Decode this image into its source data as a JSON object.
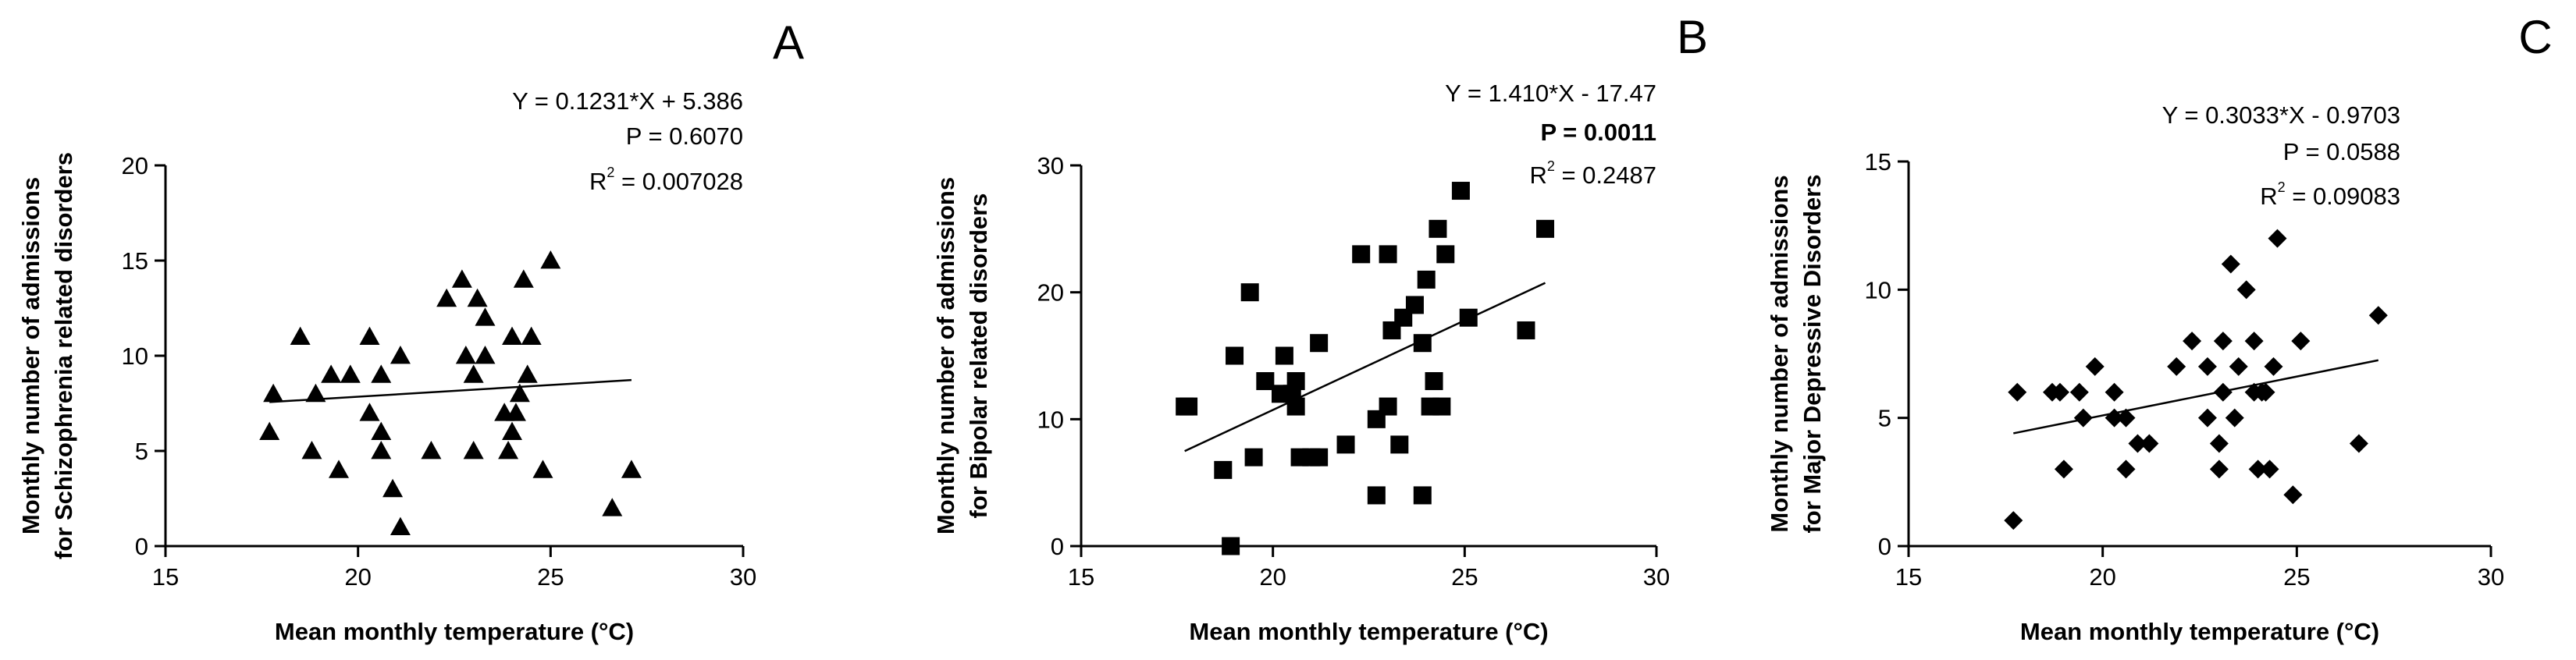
{
  "chart_data": [
    {
      "type": "scatter",
      "panel": "A",
      "marker": "triangle",
      "xlabel": "Mean monthly temperature (°C)",
      "ylabel": [
        "Monthly number of admissions",
        "for Schizophrenia related disorders"
      ],
      "xlim": [
        15,
        30
      ],
      "ylim": [
        0,
        20
      ],
      "xticks": [
        15,
        20,
        25,
        30
      ],
      "yticks": [
        0,
        5,
        10,
        15,
        20
      ],
      "annotations": [
        {
          "text": "Y = 0.1231*X + 5.386",
          "bold": false
        },
        {
          "text": "P = 0.6070",
          "bold": false
        },
        {
          "text": "R",
          "sup": "2",
          "rest": " = 0.007028",
          "bold": false
        }
      ],
      "regression": {
        "slope": 0.1231,
        "intercept": 5.386,
        "x_range": [
          17.7,
          27.1
        ]
      },
      "points": [
        {
          "x": 17.7,
          "y": 6
        },
        {
          "x": 17.8,
          "y": 8
        },
        {
          "x": 18.5,
          "y": 11
        },
        {
          "x": 18.8,
          "y": 5
        },
        {
          "x": 18.9,
          "y": 8
        },
        {
          "x": 19.3,
          "y": 9
        },
        {
          "x": 19.5,
          "y": 4
        },
        {
          "x": 19.8,
          "y": 9
        },
        {
          "x": 20.3,
          "y": 11
        },
        {
          "x": 20.3,
          "y": 7
        },
        {
          "x": 20.6,
          "y": 6
        },
        {
          "x": 20.6,
          "y": 9
        },
        {
          "x": 20.6,
          "y": 5
        },
        {
          "x": 20.9,
          "y": 3
        },
        {
          "x": 21.1,
          "y": 10
        },
        {
          "x": 21.1,
          "y": 1
        },
        {
          "x": 21.9,
          "y": 5
        },
        {
          "x": 22.3,
          "y": 13
        },
        {
          "x": 22.7,
          "y": 14
        },
        {
          "x": 22.8,
          "y": 10
        },
        {
          "x": 23.0,
          "y": 5
        },
        {
          "x": 23.0,
          "y": 9
        },
        {
          "x": 23.1,
          "y": 13
        },
        {
          "x": 23.3,
          "y": 10
        },
        {
          "x": 23.3,
          "y": 12
        },
        {
          "x": 23.8,
          "y": 7
        },
        {
          "x": 23.9,
          "y": 5
        },
        {
          "x": 24.0,
          "y": 6
        },
        {
          "x": 24.0,
          "y": 11
        },
        {
          "x": 24.1,
          "y": 7
        },
        {
          "x": 24.2,
          "y": 8
        },
        {
          "x": 24.3,
          "y": 14
        },
        {
          "x": 24.4,
          "y": 9
        },
        {
          "x": 24.5,
          "y": 11
        },
        {
          "x": 24.8,
          "y": 4
        },
        {
          "x": 25.0,
          "y": 15
        },
        {
          "x": 26.6,
          "y": 2
        },
        {
          "x": 27.1,
          "y": 4
        }
      ]
    },
    {
      "type": "scatter",
      "panel": "B",
      "marker": "square",
      "xlabel": "Mean monthly temperature (°C)",
      "ylabel": [
        "Monthly number of admissions",
        "for Bipolar related disorders"
      ],
      "xlim": [
        15,
        30
      ],
      "ylim": [
        0,
        30
      ],
      "xticks": [
        15,
        20,
        25,
        30
      ],
      "yticks": [
        0,
        10,
        20,
        30
      ],
      "annotations": [
        {
          "text": "Y = 1.410*X - 17.47",
          "bold": false
        },
        {
          "text": "P = 0.0011",
          "bold": true
        },
        {
          "text": "R",
          "sup": "2",
          "rest": " = 0.2487",
          "bold": false
        }
      ],
      "regression": {
        "slope": 1.41,
        "intercept": -17.47,
        "x_range": [
          17.7,
          27.1
        ]
      },
      "points": [
        {
          "x": 17.7,
          "y": 11
        },
        {
          "x": 17.8,
          "y": 11
        },
        {
          "x": 18.7,
          "y": 6
        },
        {
          "x": 18.9,
          "y": 0
        },
        {
          "x": 19.0,
          "y": 15
        },
        {
          "x": 19.4,
          "y": 20
        },
        {
          "x": 19.5,
          "y": 7
        },
        {
          "x": 19.8,
          "y": 13
        },
        {
          "x": 20.2,
          "y": 12
        },
        {
          "x": 20.3,
          "y": 15
        },
        {
          "x": 20.5,
          "y": 12
        },
        {
          "x": 20.6,
          "y": 13
        },
        {
          "x": 20.6,
          "y": 11
        },
        {
          "x": 20.7,
          "y": 7
        },
        {
          "x": 21.0,
          "y": 7
        },
        {
          "x": 21.2,
          "y": 7
        },
        {
          "x": 21.2,
          "y": 16
        },
        {
          "x": 21.9,
          "y": 8
        },
        {
          "x": 22.3,
          "y": 23
        },
        {
          "x": 22.7,
          "y": 10
        },
        {
          "x": 22.7,
          "y": 4
        },
        {
          "x": 23.0,
          "y": 23
        },
        {
          "x": 23.0,
          "y": 11
        },
        {
          "x": 23.1,
          "y": 17
        },
        {
          "x": 23.3,
          "y": 8
        },
        {
          "x": 23.4,
          "y": 18
        },
        {
          "x": 23.7,
          "y": 19
        },
        {
          "x": 23.9,
          "y": 16
        },
        {
          "x": 23.9,
          "y": 4
        },
        {
          "x": 24.0,
          "y": 21
        },
        {
          "x": 24.1,
          "y": 11
        },
        {
          "x": 24.2,
          "y": 13
        },
        {
          "x": 24.3,
          "y": 25
        },
        {
          "x": 24.4,
          "y": 11
        },
        {
          "x": 24.5,
          "y": 23
        },
        {
          "x": 24.9,
          "y": 28
        },
        {
          "x": 25.1,
          "y": 18
        },
        {
          "x": 26.6,
          "y": 17
        },
        {
          "x": 27.1,
          "y": 25
        }
      ]
    },
    {
      "type": "scatter",
      "panel": "C",
      "marker": "diamond",
      "xlabel": "Mean monthly temperature (°C)",
      "ylabel": [
        "Monthly number of admissions",
        "for Major Depressive Disorders"
      ],
      "xlim": [
        15,
        30
      ],
      "ylim": [
        0,
        15
      ],
      "xticks": [
        15,
        20,
        25,
        30
      ],
      "yticks": [
        0,
        5,
        10,
        15
      ],
      "annotations": [
        {
          "text": "Y = 0.3033*X - 0.9703",
          "bold": false
        },
        {
          "text": "P = 0.0588",
          "bold": false
        },
        {
          "text": "R",
          "sup": "2",
          "rest": " = 0.09083",
          "bold": false
        }
      ],
      "regression": {
        "slope": 0.3033,
        "intercept": -0.9703,
        "x_range": [
          17.7,
          27.1
        ]
      },
      "points": [
        {
          "x": 17.7,
          "y": 1
        },
        {
          "x": 17.8,
          "y": 6
        },
        {
          "x": 18.7,
          "y": 6
        },
        {
          "x": 18.9,
          "y": 6
        },
        {
          "x": 19.0,
          "y": 3
        },
        {
          "x": 19.4,
          "y": 6
        },
        {
          "x": 19.5,
          "y": 5
        },
        {
          "x": 19.8,
          "y": 7
        },
        {
          "x": 20.3,
          "y": 6
        },
        {
          "x": 20.3,
          "y": 5
        },
        {
          "x": 20.6,
          "y": 5
        },
        {
          "x": 20.6,
          "y": 3
        },
        {
          "x": 20.9,
          "y": 4
        },
        {
          "x": 21.2,
          "y": 4
        },
        {
          "x": 21.9,
          "y": 7
        },
        {
          "x": 22.3,
          "y": 8
        },
        {
          "x": 22.7,
          "y": 5
        },
        {
          "x": 22.7,
          "y": 7
        },
        {
          "x": 23.0,
          "y": 3
        },
        {
          "x": 23.0,
          "y": 4
        },
        {
          "x": 23.1,
          "y": 6
        },
        {
          "x": 23.1,
          "y": 8
        },
        {
          "x": 23.3,
          "y": 11
        },
        {
          "x": 23.4,
          "y": 5
        },
        {
          "x": 23.5,
          "y": 7
        },
        {
          "x": 23.7,
          "y": 10
        },
        {
          "x": 23.9,
          "y": 6
        },
        {
          "x": 23.9,
          "y": 8
        },
        {
          "x": 24.0,
          "y": 3
        },
        {
          "x": 24.1,
          "y": 6
        },
        {
          "x": 24.2,
          "y": 6
        },
        {
          "x": 24.3,
          "y": 3
        },
        {
          "x": 24.4,
          "y": 7
        },
        {
          "x": 24.5,
          "y": 12
        },
        {
          "x": 24.9,
          "y": 2
        },
        {
          "x": 25.1,
          "y": 8
        },
        {
          "x": 26.6,
          "y": 4
        },
        {
          "x": 27.1,
          "y": 9
        }
      ]
    }
  ]
}
